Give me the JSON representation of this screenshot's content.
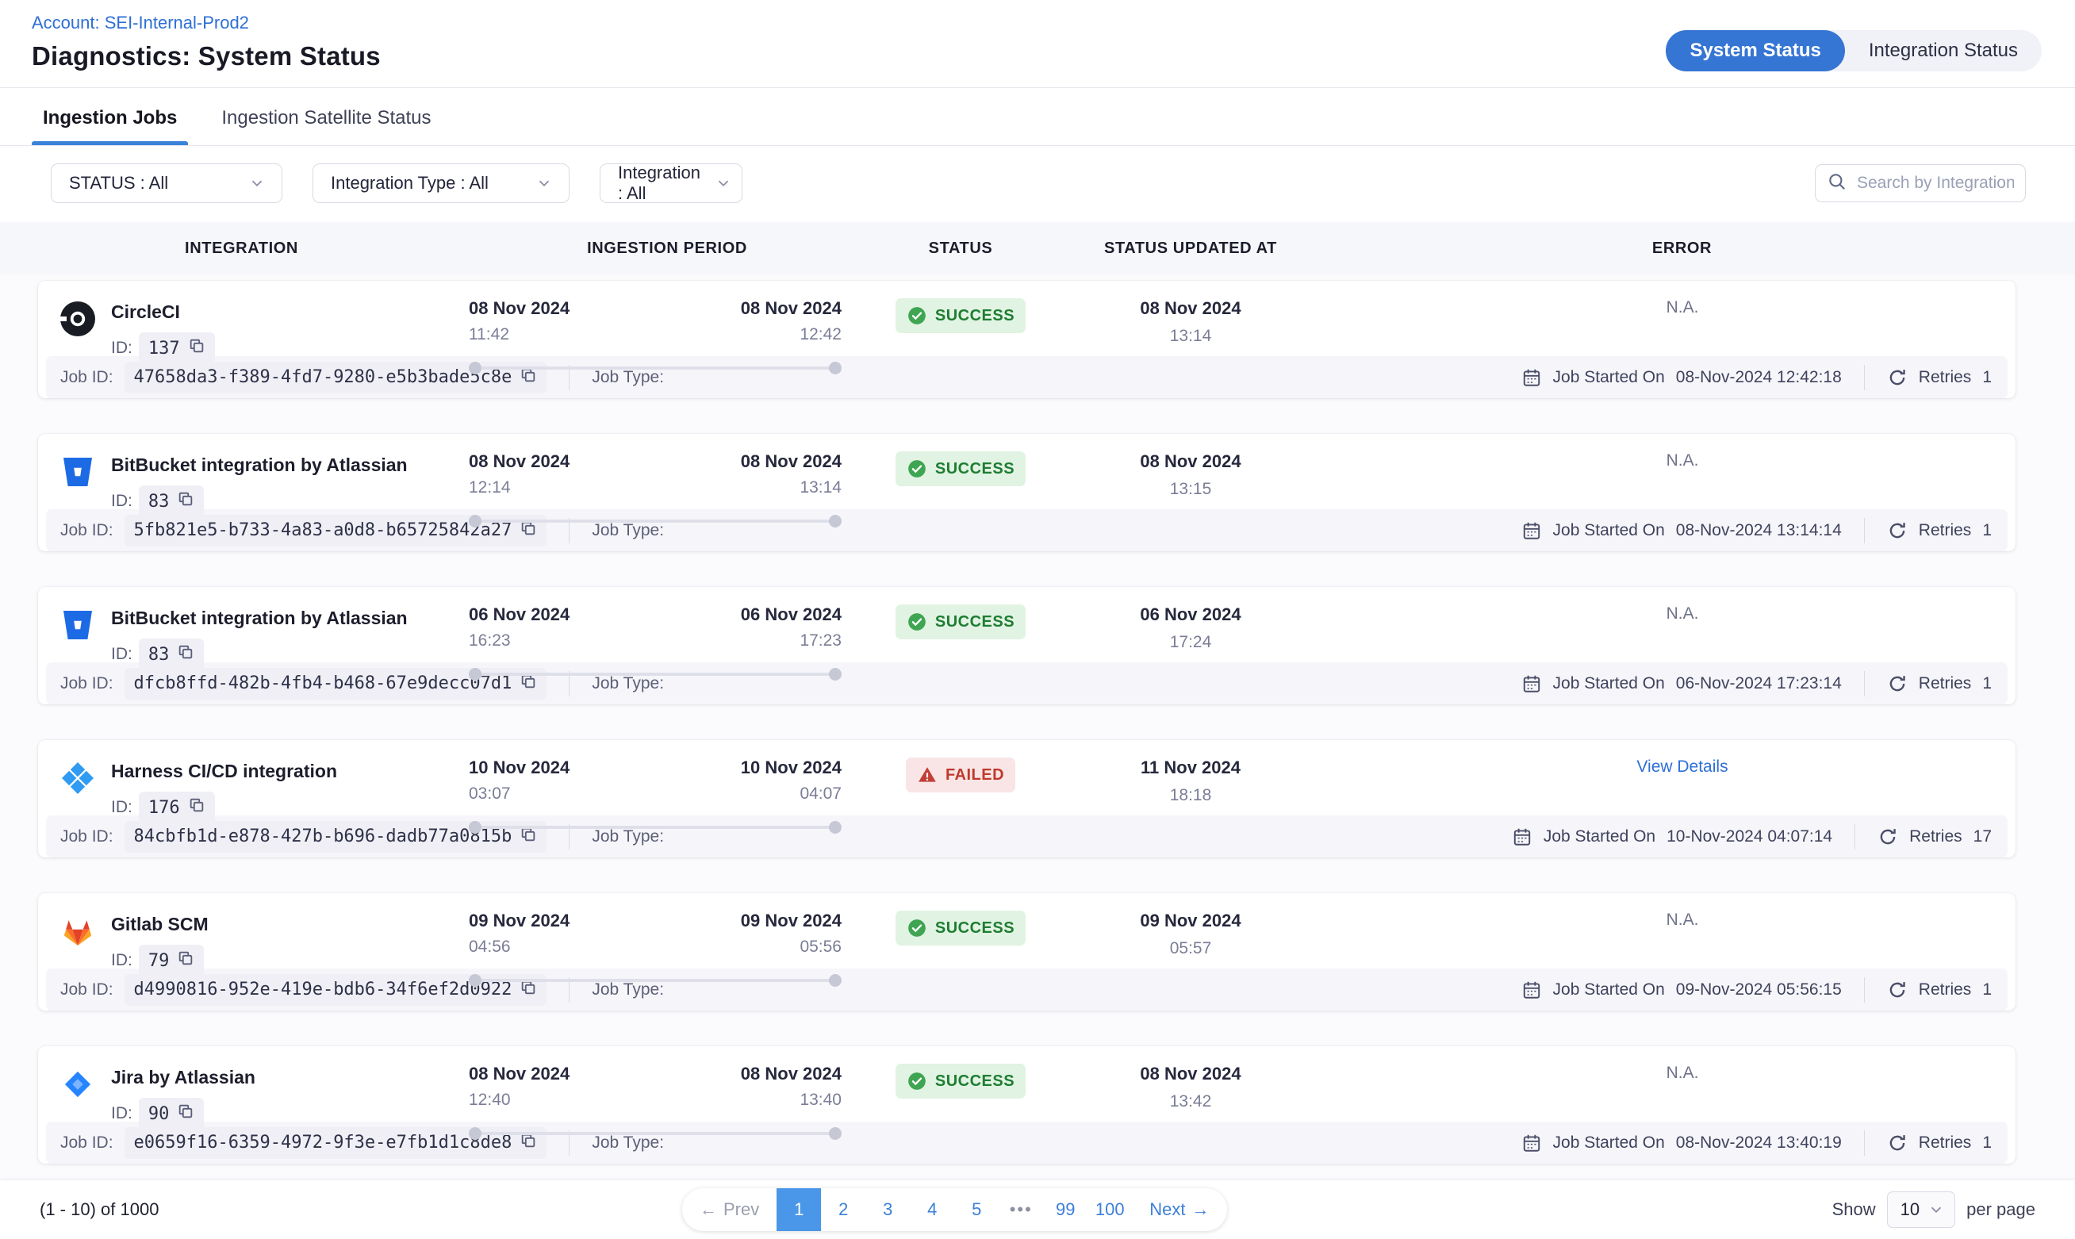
{
  "header": {
    "account_link": "Account: SEI-Internal-Prod2",
    "title": "Diagnostics: System Status"
  },
  "view_toggle": {
    "options": [
      {
        "label": "System Status",
        "active": true
      },
      {
        "label": "Integration Status",
        "active": false
      }
    ]
  },
  "tabs": [
    {
      "label": "Ingestion Jobs",
      "active": true
    },
    {
      "label": "Ingestion Satellite Status",
      "active": false
    }
  ],
  "filters": [
    {
      "label": "STATUS : All"
    },
    {
      "label": "Integration Type : All"
    },
    {
      "label": "Integration : All"
    }
  ],
  "search": {
    "placeholder": "Search by Integration Name"
  },
  "table": {
    "columns": [
      "INTEGRATION",
      "INGESTION PERIOD",
      "STATUS",
      "STATUS UPDATED AT",
      "ERROR"
    ],
    "labels": {
      "id": "ID:",
      "job_id": "Job ID:",
      "job_type": "Job Type:",
      "job_started_on": "Job Started On",
      "retries": "Retries"
    },
    "rows": [
      {
        "icon": "circleci",
        "name": "CircleCI",
        "id": "137",
        "period": {
          "start_date": "08 Nov 2024",
          "start_time": "11:42",
          "end_date": "08 Nov 2024",
          "end_time": "12:42"
        },
        "status": {
          "label": "SUCCESS",
          "type": "success"
        },
        "updated": {
          "date": "08 Nov 2024",
          "time": "13:14"
        },
        "error": {
          "type": "na",
          "label": "N.A."
        },
        "job": {
          "id": "47658da3-f389-4fd7-9280-e5b3bade5c8e",
          "started": "08-Nov-2024 12:42:18",
          "retries": "1"
        }
      },
      {
        "icon": "bitbucket",
        "name": "BitBucket integration by Atlassian",
        "id": "83",
        "period": {
          "start_date": "08 Nov 2024",
          "start_time": "12:14",
          "end_date": "08 Nov 2024",
          "end_time": "13:14"
        },
        "status": {
          "label": "SUCCESS",
          "type": "success"
        },
        "updated": {
          "date": "08 Nov 2024",
          "time": "13:15"
        },
        "error": {
          "type": "na",
          "label": "N.A."
        },
        "job": {
          "id": "5fb821e5-b733-4a83-a0d8-b65725842a27",
          "started": "08-Nov-2024 13:14:14",
          "retries": "1"
        }
      },
      {
        "icon": "bitbucket",
        "name": "BitBucket integration by Atlassian",
        "id": "83",
        "period": {
          "start_date": "06 Nov 2024",
          "start_time": "16:23",
          "end_date": "06 Nov 2024",
          "end_time": "17:23"
        },
        "status": {
          "label": "SUCCESS",
          "type": "success"
        },
        "updated": {
          "date": "06 Nov 2024",
          "time": "17:24"
        },
        "error": {
          "type": "na",
          "label": "N.A."
        },
        "job": {
          "id": "dfcb8ffd-482b-4fb4-b468-67e9decc07d1",
          "started": "06-Nov-2024 17:23:14",
          "retries": "1"
        }
      },
      {
        "icon": "harness",
        "name": "Harness CI/CD integration",
        "id": "176",
        "period": {
          "start_date": "10 Nov 2024",
          "start_time": "03:07",
          "end_date": "10 Nov 2024",
          "end_time": "04:07"
        },
        "status": {
          "label": "FAILED",
          "type": "failed"
        },
        "updated": {
          "date": "11 Nov 2024",
          "time": "18:18"
        },
        "error": {
          "type": "link",
          "label": "View Details"
        },
        "job": {
          "id": "84cbfb1d-e878-427b-b696-dadb77a0815b",
          "started": "10-Nov-2024 04:07:14",
          "retries": "17"
        }
      },
      {
        "icon": "gitlab",
        "name": "Gitlab SCM",
        "id": "79",
        "period": {
          "start_date": "09 Nov 2024",
          "start_time": "04:56",
          "end_date": "09 Nov 2024",
          "end_time": "05:56"
        },
        "status": {
          "label": "SUCCESS",
          "type": "success"
        },
        "updated": {
          "date": "09 Nov 2024",
          "time": "05:57"
        },
        "error": {
          "type": "na",
          "label": "N.A."
        },
        "job": {
          "id": "d4990816-952e-419e-bdb6-34f6ef2d0922",
          "started": "09-Nov-2024 05:56:15",
          "retries": "1"
        }
      },
      {
        "icon": "jira",
        "name": "Jira by Atlassian",
        "id": "90",
        "period": {
          "start_date": "08 Nov 2024",
          "start_time": "12:40",
          "end_date": "08 Nov 2024",
          "end_time": "13:40"
        },
        "status": {
          "label": "SUCCESS",
          "type": "success"
        },
        "updated": {
          "date": "08 Nov 2024",
          "time": "13:42"
        },
        "error": {
          "type": "na",
          "label": "N.A."
        },
        "job": {
          "id": "e0659f16-6359-4972-9f3e-e7fb1d1c8de8",
          "started": "08-Nov-2024 13:40:19",
          "retries": "1"
        }
      }
    ]
  },
  "pagination": {
    "range": "(1 - 10) of 1000",
    "prev": "Prev",
    "next": "Next",
    "pages": [
      "1",
      "2",
      "3",
      "4",
      "5",
      "•••",
      "99",
      "100"
    ],
    "active": "1",
    "show": "Show",
    "page_size": "10",
    "per_page": "per page"
  },
  "colors": {
    "accent": "#3575d3",
    "link": "#2e6fd6",
    "success": "#1e7d32",
    "failed": "#c0392b"
  }
}
